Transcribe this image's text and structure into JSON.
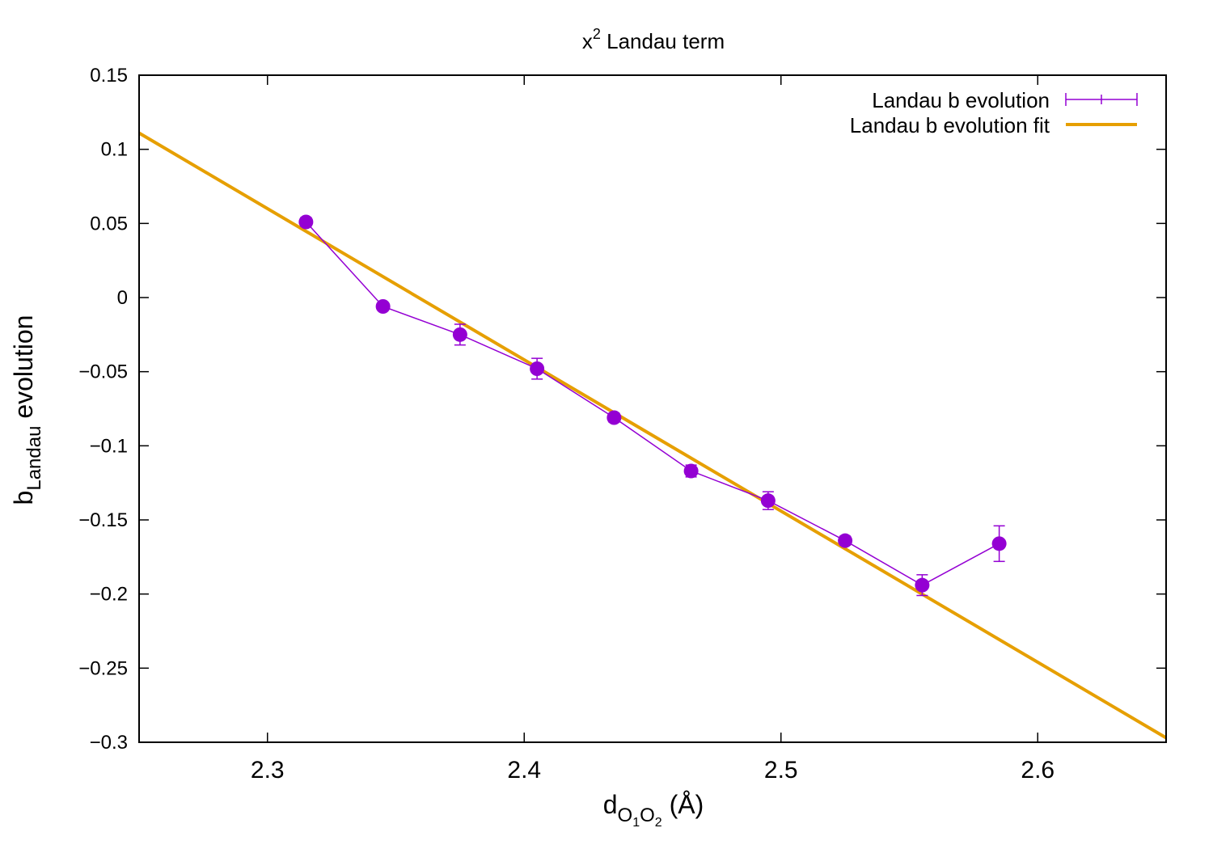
{
  "chart_data": {
    "type": "line",
    "title_base": "x",
    "title_sup": "2",
    "title_rest": " Landau term",
    "xlabel_base": "d",
    "xlabel_sub_1": "O",
    "xlabel_sub_1_idx": "1",
    "xlabel_sub_2": "O",
    "xlabel_sub_2_idx": "2",
    "xlabel_unit": " (Å)",
    "ylabel_base": "b",
    "ylabel_sub": "Landau",
    "ylabel_rest": " evolution",
    "xlim": [
      2.25,
      2.65
    ],
    "ylim": [
      -0.3,
      0.15
    ],
    "x_ticks": [
      2.3,
      2.4,
      2.5,
      2.6
    ],
    "x_tick_labels": [
      "2.3",
      "2.4",
      "2.5",
      "2.6"
    ],
    "y_ticks": [
      0.15,
      0.1,
      0.05,
      0,
      -0.05,
      -0.1,
      -0.15,
      -0.2,
      -0.25,
      -0.3
    ],
    "y_tick_labels": [
      "0.15",
      "0.1",
      "0.05",
      "0",
      "−0.05",
      "−0.1",
      "−0.15",
      "−0.2",
      "−0.25",
      "−0.3"
    ],
    "grid": false,
    "legend_position": "top-right",
    "series": [
      {
        "name": "Landau b evolution",
        "color": "#9400d3",
        "x": [
          2.315,
          2.345,
          2.375,
          2.405,
          2.435,
          2.465,
          2.495,
          2.525,
          2.555,
          2.585
        ],
        "y": [
          0.051,
          -0.006,
          -0.025,
          -0.048,
          -0.081,
          -0.117,
          -0.137,
          -0.164,
          -0.194,
          -0.166
        ],
        "yerr": [
          0.003,
          0.002,
          0.007,
          0.007,
          0.003,
          0.004,
          0.006,
          0.003,
          0.007,
          0.012
        ]
      },
      {
        "name": "Landau b evolution fit",
        "color": "#e69f00",
        "x": [
          2.25,
          2.65
        ],
        "y": [
          0.111,
          -0.297
        ]
      }
    ]
  }
}
